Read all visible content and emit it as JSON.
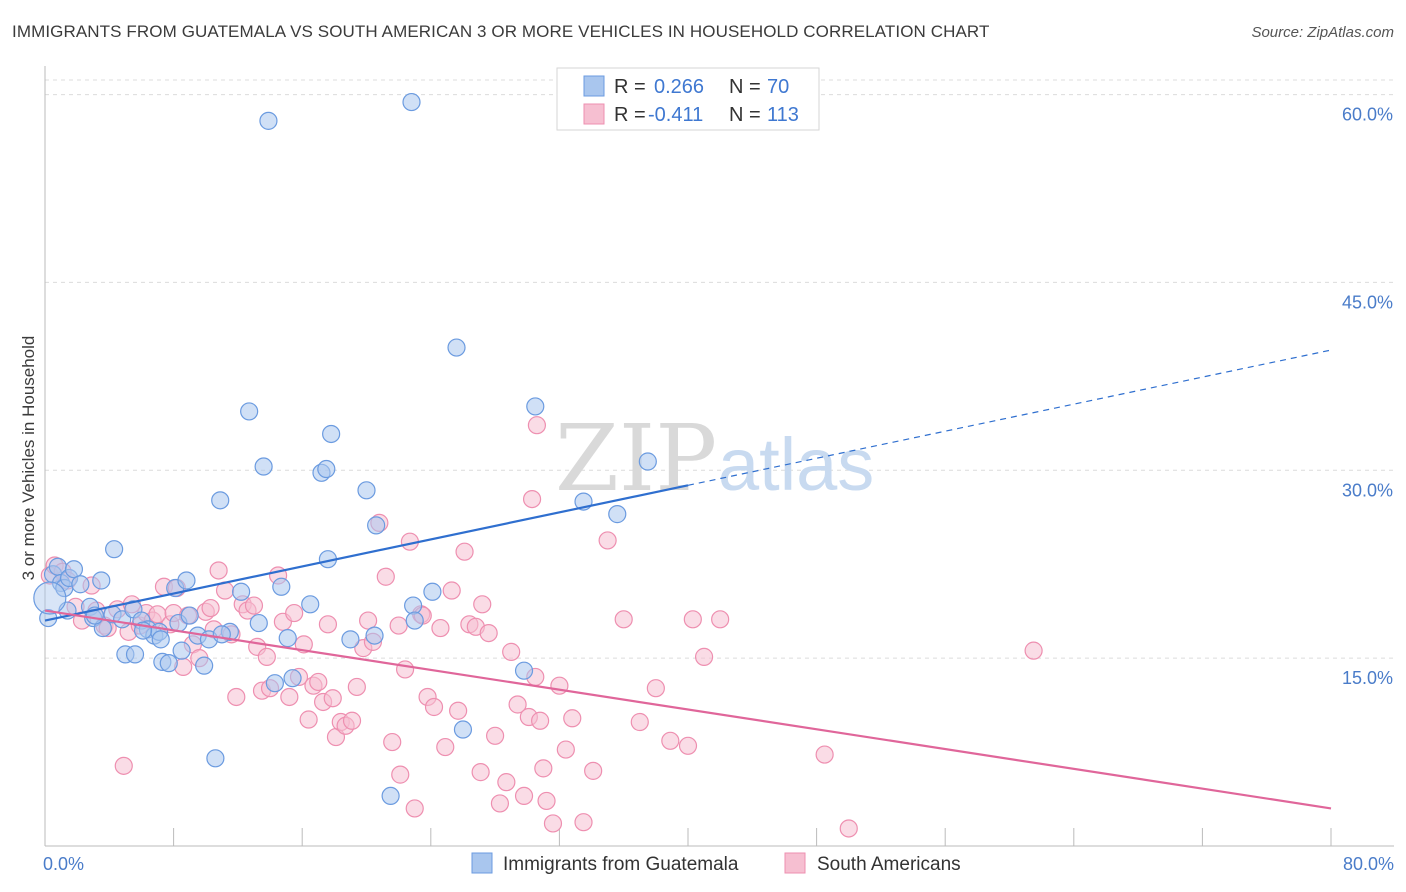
{
  "header": {
    "title": "IMMIGRANTS FROM GUATEMALA VS SOUTH AMERICAN 3 OR MORE VEHICLES IN HOUSEHOLD CORRELATION CHART",
    "source": "Source: ZipAtlas.com"
  },
  "legend": {
    "r_label": "R =",
    "n_label": "N =",
    "blue": {
      "r": "0.266",
      "n": "70"
    },
    "pink": {
      "r": "-0.411",
      "n": "113"
    }
  },
  "watermark": {
    "zip": "ZIP",
    "atlas": "atlas"
  },
  "chart_data": {
    "type": "scatter",
    "ylabel": "3 or more Vehicles in Household",
    "xlim": [
      0,
      80
    ],
    "ylim": [
      0,
      63
    ],
    "x_ticks": [
      "0.0%",
      "80.0%"
    ],
    "y_ticks": [
      {
        "value": 15,
        "label": "15.0%"
      },
      {
        "value": 30,
        "label": "30.0%"
      },
      {
        "value": 45,
        "label": "45.0%"
      },
      {
        "value": 60,
        "label": "60.0%"
      }
    ],
    "grid": true,
    "legend_placement": "top-center",
    "colors": {
      "blue_fill": "#a9c6ee",
      "blue_stroke": "#6b9be0",
      "blue_line": "#2f6fcf",
      "pink_fill": "#f6bfd1",
      "pink_stroke": "#ee8fb0",
      "pink_line": "#e0669a"
    },
    "series": [
      {
        "name": "Immigrants from Guatemala",
        "color": "blue",
        "trend": {
          "x1": 0,
          "y1": 18.0,
          "x2": 40,
          "y2": 28.8,
          "dash_to_x": 80,
          "dash_to_y": 39.6
        },
        "points": [
          [
            0.2,
            18.2
          ],
          [
            0.5,
            21.7
          ],
          [
            0.8,
            22.3
          ],
          [
            1.0,
            21.0
          ],
          [
            1.2,
            20.6
          ],
          [
            1.5,
            21.4
          ],
          [
            1.8,
            22.1
          ],
          [
            2.2,
            20.9
          ],
          [
            2.8,
            19.1
          ],
          [
            3.0,
            18.2
          ],
          [
            3.5,
            21.2
          ],
          [
            3.6,
            17.4
          ],
          [
            4.2,
            18.5
          ],
          [
            4.3,
            23.7
          ],
          [
            4.8,
            18.1
          ],
          [
            5.0,
            15.3
          ],
          [
            5.5,
            18.9
          ],
          [
            5.6,
            15.3
          ],
          [
            6.0,
            18.0
          ],
          [
            6.4,
            17.3
          ],
          [
            6.8,
            16.8
          ],
          [
            7.1,
            17.1
          ],
          [
            7.2,
            16.5
          ],
          [
            7.3,
            14.7
          ],
          [
            7.7,
            14.6
          ],
          [
            8.1,
            20.6
          ],
          [
            8.3,
            17.8
          ],
          [
            8.5,
            15.6
          ],
          [
            8.8,
            21.2
          ],
          [
            9.5,
            16.8
          ],
          [
            9.9,
            14.4
          ],
          [
            10.2,
            16.5
          ],
          [
            10.6,
            7.0
          ],
          [
            10.9,
            27.6
          ],
          [
            11.5,
            17.1
          ],
          [
            12.2,
            20.3
          ],
          [
            12.7,
            34.7
          ],
          [
            13.3,
            17.8
          ],
          [
            13.6,
            30.3
          ],
          [
            13.9,
            57.9
          ],
          [
            14.3,
            13.0
          ],
          [
            14.7,
            20.7
          ],
          [
            15.1,
            16.6
          ],
          [
            15.4,
            13.4
          ],
          [
            16.5,
            19.3
          ],
          [
            17.2,
            29.8
          ],
          [
            17.6,
            22.9
          ],
          [
            17.8,
            32.9
          ],
          [
            17.5,
            30.1
          ],
          [
            19.0,
            16.5
          ],
          [
            20.0,
            28.4
          ],
          [
            20.5,
            16.8
          ],
          [
            20.6,
            25.6
          ],
          [
            21.5,
            4.0
          ],
          [
            22.8,
            59.4
          ],
          [
            22.9,
            19.2
          ],
          [
            23.0,
            18.0
          ],
          [
            24.1,
            20.3
          ],
          [
            25.6,
            39.8
          ],
          [
            26.0,
            9.3
          ],
          [
            29.8,
            14.0
          ],
          [
            30.5,
            35.1
          ],
          [
            33.5,
            27.5
          ],
          [
            35.6,
            26.5
          ],
          [
            37.5,
            30.7
          ],
          [
            1.4,
            18.8
          ],
          [
            3.1,
            18.4
          ],
          [
            6.1,
            17.2
          ],
          [
            9.0,
            18.4
          ],
          [
            11.0,
            16.9
          ]
        ]
      },
      {
        "name": "South Americans",
        "color": "pink",
        "trend": {
          "x1": 0,
          "y1": 18.8,
          "x2": 80,
          "y2": 3.0
        },
        "points": [
          [
            0.3,
            21.6
          ],
          [
            0.6,
            22.4
          ],
          [
            1.1,
            21.9
          ],
          [
            1.4,
            21.2
          ],
          [
            1.9,
            19.1
          ],
          [
            2.3,
            18.0
          ],
          [
            2.9,
            20.8
          ],
          [
            3.2,
            18.8
          ],
          [
            3.7,
            17.6
          ],
          [
            3.9,
            17.4
          ],
          [
            4.5,
            18.9
          ],
          [
            4.9,
            6.4
          ],
          [
            5.2,
            17.1
          ],
          [
            5.4,
            19.3
          ],
          [
            5.9,
            17.6
          ],
          [
            6.3,
            18.6
          ],
          [
            6.7,
            18.0
          ],
          [
            7.0,
            18.5
          ],
          [
            7.4,
            20.7
          ],
          [
            7.8,
            17.7
          ],
          [
            8.0,
            18.6
          ],
          [
            8.2,
            20.6
          ],
          [
            8.6,
            14.3
          ],
          [
            8.9,
            18.4
          ],
          [
            9.2,
            16.1
          ],
          [
            9.6,
            15.0
          ],
          [
            10.0,
            18.7
          ],
          [
            10.3,
            19.0
          ],
          [
            10.5,
            17.3
          ],
          [
            10.8,
            22.0
          ],
          [
            11.2,
            20.4
          ],
          [
            11.6,
            16.9
          ],
          [
            11.9,
            11.9
          ],
          [
            12.3,
            19.3
          ],
          [
            12.6,
            18.8
          ],
          [
            13.0,
            19.2
          ],
          [
            13.2,
            15.9
          ],
          [
            13.5,
            12.4
          ],
          [
            13.8,
            15.1
          ],
          [
            14.0,
            12.6
          ],
          [
            14.5,
            21.6
          ],
          [
            14.8,
            17.9
          ],
          [
            15.2,
            11.9
          ],
          [
            15.5,
            18.6
          ],
          [
            15.8,
            13.5
          ],
          [
            16.1,
            16.1
          ],
          [
            16.4,
            10.1
          ],
          [
            16.7,
            12.8
          ],
          [
            17.0,
            13.1
          ],
          [
            17.3,
            11.5
          ],
          [
            17.6,
            17.7
          ],
          [
            17.9,
            11.8
          ],
          [
            18.1,
            8.7
          ],
          [
            18.4,
            9.9
          ],
          [
            18.7,
            9.6
          ],
          [
            19.1,
            10.0
          ],
          [
            19.4,
            12.7
          ],
          [
            19.8,
            15.8
          ],
          [
            20.1,
            18.0
          ],
          [
            20.4,
            16.3
          ],
          [
            20.8,
            25.8
          ],
          [
            21.2,
            21.5
          ],
          [
            21.6,
            8.3
          ],
          [
            22.0,
            17.6
          ],
          [
            22.4,
            14.1
          ],
          [
            22.7,
            24.3
          ],
          [
            23.0,
            3.0
          ],
          [
            23.4,
            18.5
          ],
          [
            23.8,
            11.9
          ],
          [
            24.2,
            11.1
          ],
          [
            24.6,
            17.4
          ],
          [
            24.9,
            7.9
          ],
          [
            25.3,
            20.4
          ],
          [
            25.7,
            10.8
          ],
          [
            26.1,
            23.5
          ],
          [
            26.4,
            17.7
          ],
          [
            26.8,
            17.5
          ],
          [
            27.2,
            19.3
          ],
          [
            27.6,
            17.0
          ],
          [
            28.0,
            8.8
          ],
          [
            28.3,
            3.4
          ],
          [
            28.7,
            5.1
          ],
          [
            29.0,
            15.5
          ],
          [
            29.4,
            11.3
          ],
          [
            29.8,
            4.0
          ],
          [
            30.1,
            10.3
          ],
          [
            30.5,
            13.5
          ],
          [
            30.8,
            10.0
          ],
          [
            31.2,
            3.6
          ],
          [
            31.6,
            1.8
          ],
          [
            32.0,
            12.8
          ],
          [
            32.4,
            7.7
          ],
          [
            32.8,
            10.2
          ],
          [
            33.5,
            1.9
          ],
          [
            34.1,
            6.0
          ],
          [
            35.0,
            24.4
          ],
          [
            36.0,
            18.1
          ],
          [
            37.0,
            9.9
          ],
          [
            38.0,
            12.6
          ],
          [
            38.9,
            8.4
          ],
          [
            40.0,
            8.0
          ],
          [
            40.3,
            18.1
          ],
          [
            41.0,
            15.1
          ],
          [
            42.0,
            18.1
          ],
          [
            48.5,
            7.3
          ],
          [
            50.0,
            1.4
          ],
          [
            61.5,
            15.6
          ],
          [
            22.1,
            5.7
          ],
          [
            30.3,
            27.7
          ],
          [
            30.6,
            33.6
          ],
          [
            23.5,
            18.4
          ],
          [
            27.1,
            5.9
          ],
          [
            31.0,
            6.2
          ]
        ]
      }
    ]
  }
}
